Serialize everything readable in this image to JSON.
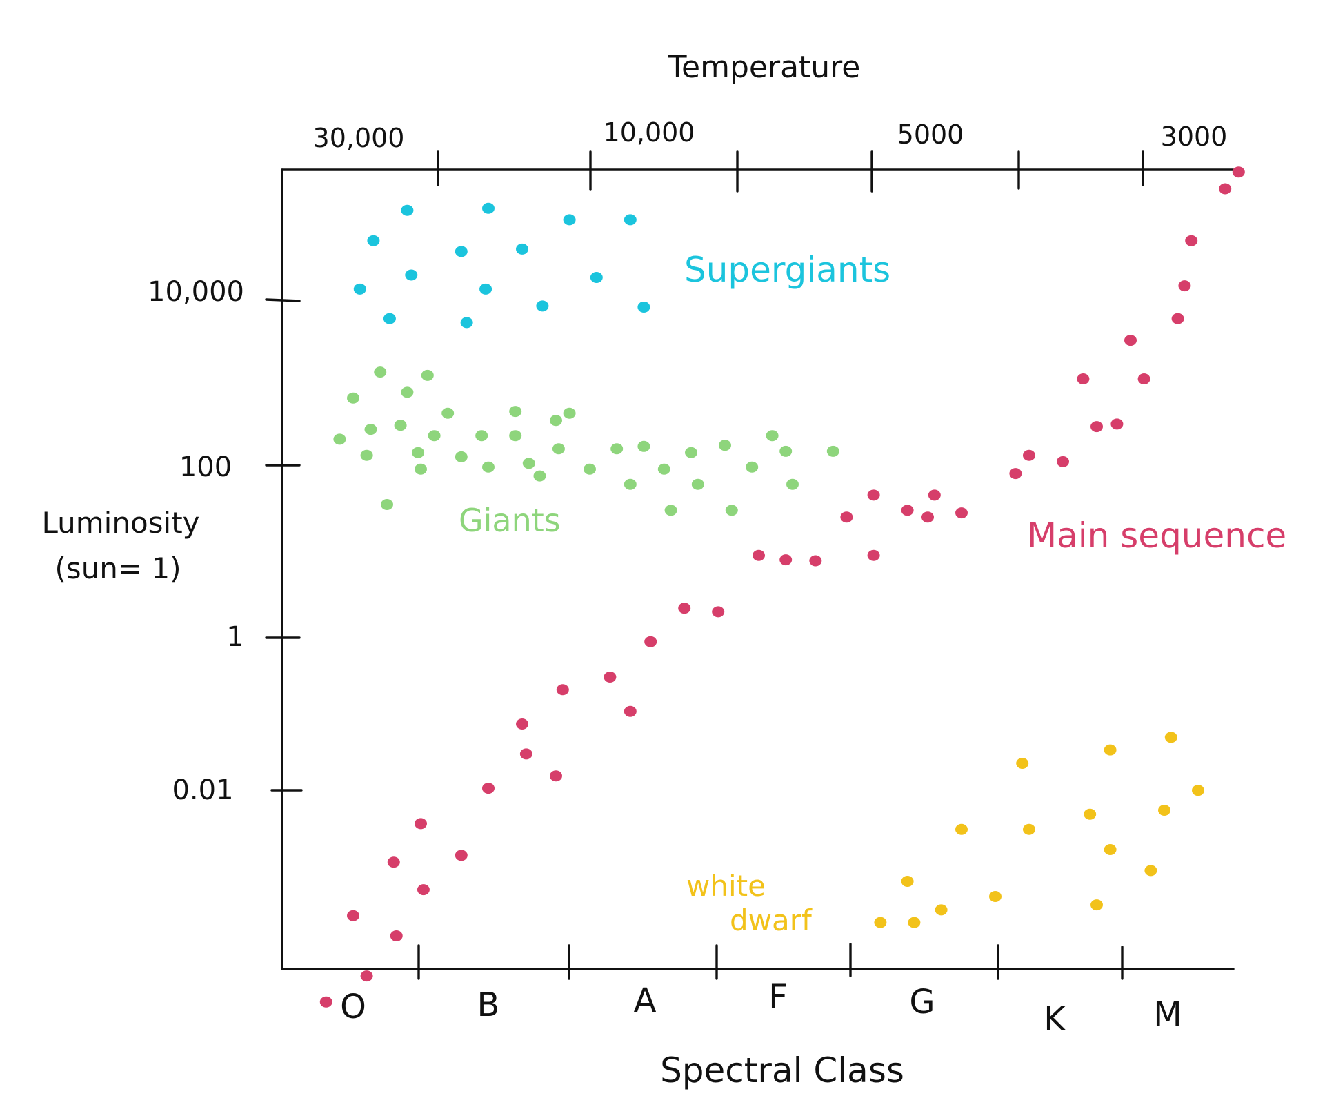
{
  "chart_data": {
    "type": "scatter",
    "title": "",
    "x_axis_bottom": {
      "label": "Spectral Class",
      "categories": [
        "O",
        "B",
        "A",
        "F",
        "G",
        "K",
        "M"
      ]
    },
    "x_axis_top": {
      "label": "Temperature",
      "ticks": [
        "30,000",
        "10,000",
        "5000",
        "3000"
      ]
    },
    "y_axis": {
      "label_line1": "Luminosity",
      "label_line2": "(sun= 1)",
      "scale": "log",
      "ticks": [
        "10,000",
        "100",
        "1",
        "0.01"
      ],
      "tick_values": [
        10000,
        100,
        1,
        0.01
      ]
    },
    "grid": false,
    "series": [
      {
        "name": "Supergiants",
        "color": "#1bc4dd",
        "points": [
          {
            "class_pos": 0.05,
            "luminosity": 11000
          },
          {
            "class_pos": 0.15,
            "luminosity": 40000
          },
          {
            "class_pos": 0.27,
            "luminosity": 5000
          },
          {
            "class_pos": 0.4,
            "luminosity": 90000
          },
          {
            "class_pos": 0.43,
            "luminosity": 16000
          },
          {
            "class_pos": 0.8,
            "luminosity": 30000
          },
          {
            "class_pos": 0.84,
            "luminosity": 4500
          },
          {
            "class_pos": 0.98,
            "luminosity": 11000
          },
          {
            "class_pos": 1.0,
            "luminosity": 95000
          },
          {
            "class_pos": 1.25,
            "luminosity": 32000
          },
          {
            "class_pos": 1.4,
            "luminosity": 7000
          },
          {
            "class_pos": 1.6,
            "luminosity": 70000
          },
          {
            "class_pos": 1.8,
            "luminosity": 15000
          },
          {
            "class_pos": 2.05,
            "luminosity": 70000
          },
          {
            "class_pos": 2.15,
            "luminosity": 6800
          }
        ]
      },
      {
        "name": "Giants",
        "color": "#8ed57c",
        "points": [
          {
            "class_pos": -0.1,
            "luminosity": 200
          },
          {
            "class_pos": 0.0,
            "luminosity": 600
          },
          {
            "class_pos": 0.1,
            "luminosity": 130
          },
          {
            "class_pos": 0.13,
            "luminosity": 260
          },
          {
            "class_pos": 0.2,
            "luminosity": 1200
          },
          {
            "class_pos": 0.25,
            "luminosity": 35
          },
          {
            "class_pos": 0.35,
            "luminosity": 290
          },
          {
            "class_pos": 0.4,
            "luminosity": 700
          },
          {
            "class_pos": 0.48,
            "luminosity": 140
          },
          {
            "class_pos": 0.5,
            "luminosity": 90
          },
          {
            "class_pos": 0.55,
            "luminosity": 1100
          },
          {
            "class_pos": 0.6,
            "luminosity": 220
          },
          {
            "class_pos": 0.7,
            "luminosity": 400
          },
          {
            "class_pos": 0.8,
            "luminosity": 125
          },
          {
            "class_pos": 0.95,
            "luminosity": 220
          },
          {
            "class_pos": 1.0,
            "luminosity": 95
          },
          {
            "class_pos": 1.2,
            "luminosity": 420
          },
          {
            "class_pos": 1.2,
            "luminosity": 220
          },
          {
            "class_pos": 1.3,
            "luminosity": 105
          },
          {
            "class_pos": 1.38,
            "luminosity": 75
          },
          {
            "class_pos": 1.5,
            "luminosity": 330
          },
          {
            "class_pos": 1.52,
            "luminosity": 155
          },
          {
            "class_pos": 1.6,
            "luminosity": 400
          },
          {
            "class_pos": 1.75,
            "luminosity": 90
          },
          {
            "class_pos": 1.95,
            "luminosity": 155
          },
          {
            "class_pos": 2.05,
            "luminosity": 60
          },
          {
            "class_pos": 2.15,
            "luminosity": 165
          },
          {
            "class_pos": 2.3,
            "luminosity": 90
          },
          {
            "class_pos": 2.35,
            "luminosity": 30
          },
          {
            "class_pos": 2.5,
            "luminosity": 140
          },
          {
            "class_pos": 2.55,
            "luminosity": 60
          },
          {
            "class_pos": 2.75,
            "luminosity": 170
          },
          {
            "class_pos": 2.8,
            "luminosity": 30
          },
          {
            "class_pos": 2.95,
            "luminosity": 95
          },
          {
            "class_pos": 3.1,
            "luminosity": 220
          },
          {
            "class_pos": 3.2,
            "luminosity": 145
          },
          {
            "class_pos": 3.25,
            "luminosity": 60
          },
          {
            "class_pos": 3.55,
            "luminosity": 145
          }
        ]
      },
      {
        "name": "Main sequence",
        "color": "#d63e6a",
        "points": [
          {
            "class_pos": -0.2,
            "luminosity": 6e-05
          },
          {
            "class_pos": 0.0,
            "luminosity": 0.0006
          },
          {
            "class_pos": 0.1,
            "luminosity": 0.00012
          },
          {
            "class_pos": 0.3,
            "luminosity": 0.0025
          },
          {
            "class_pos": 0.32,
            "luminosity": 0.00035
          },
          {
            "class_pos": 0.5,
            "luminosity": 0.007
          },
          {
            "class_pos": 0.52,
            "luminosity": 0.0012
          },
          {
            "class_pos": 0.8,
            "luminosity": 0.003
          },
          {
            "class_pos": 1.0,
            "luminosity": 0.018
          },
          {
            "class_pos": 1.25,
            "luminosity": 0.1
          },
          {
            "class_pos": 1.28,
            "luminosity": 0.045
          },
          {
            "class_pos": 1.5,
            "luminosity": 0.025
          },
          {
            "class_pos": 1.55,
            "luminosity": 0.25
          },
          {
            "class_pos": 1.9,
            "luminosity": 0.35
          },
          {
            "class_pos": 2.05,
            "luminosity": 0.14
          },
          {
            "class_pos": 2.2,
            "luminosity": 0.9
          },
          {
            "class_pos": 2.45,
            "luminosity": 2.2
          },
          {
            "class_pos": 2.7,
            "luminosity": 2.0
          },
          {
            "class_pos": 3.0,
            "luminosity": 9
          },
          {
            "class_pos": 3.2,
            "luminosity": 8
          },
          {
            "class_pos": 3.42,
            "luminosity": 7.8
          },
          {
            "class_pos": 3.65,
            "luminosity": 25
          },
          {
            "class_pos": 3.85,
            "luminosity": 45
          },
          {
            "class_pos": 3.85,
            "luminosity": 9
          },
          {
            "class_pos": 4.1,
            "luminosity": 30
          },
          {
            "class_pos": 4.25,
            "luminosity": 25
          },
          {
            "class_pos": 4.3,
            "luminosity": 45
          },
          {
            "class_pos": 4.5,
            "luminosity": 28
          },
          {
            "class_pos": 4.9,
            "luminosity": 80
          },
          {
            "class_pos": 5.0,
            "luminosity": 130
          },
          {
            "class_pos": 5.25,
            "luminosity": 110
          },
          {
            "class_pos": 5.4,
            "luminosity": 1000
          },
          {
            "class_pos": 5.5,
            "luminosity": 280
          },
          {
            "class_pos": 5.65,
            "luminosity": 300
          },
          {
            "class_pos": 5.75,
            "luminosity": 2800
          },
          {
            "class_pos": 5.85,
            "luminosity": 1000
          },
          {
            "class_pos": 6.1,
            "luminosity": 5000
          },
          {
            "class_pos": 6.15,
            "luminosity": 12000
          },
          {
            "class_pos": 6.2,
            "luminosity": 40000
          },
          {
            "class_pos": 6.45,
            "luminosity": 160000
          },
          {
            "class_pos": 6.55,
            "luminosity": 250000
          }
        ]
      },
      {
        "name": "white dwarf",
        "color": "#f2c21a",
        "points": [
          {
            "class_pos": 3.9,
            "luminosity": 0.0005
          },
          {
            "class_pos": 4.1,
            "luminosity": 0.0015
          },
          {
            "class_pos": 4.15,
            "luminosity": 0.0005
          },
          {
            "class_pos": 4.35,
            "luminosity": 0.0007
          },
          {
            "class_pos": 4.5,
            "luminosity": 0.006
          },
          {
            "class_pos": 4.75,
            "luminosity": 0.001
          },
          {
            "class_pos": 4.95,
            "luminosity": 0.035
          },
          {
            "class_pos": 5.0,
            "luminosity": 0.006
          },
          {
            "class_pos": 5.45,
            "luminosity": 0.009
          },
          {
            "class_pos": 5.5,
            "luminosity": 0.0008
          },
          {
            "class_pos": 5.6,
            "luminosity": 0.05
          },
          {
            "class_pos": 5.6,
            "luminosity": 0.0035
          },
          {
            "class_pos": 5.9,
            "luminosity": 0.002
          },
          {
            "class_pos": 6.0,
            "luminosity": 0.01
          },
          {
            "class_pos": 6.05,
            "luminosity": 0.07
          },
          {
            "class_pos": 6.25,
            "luminosity": 0.017
          }
        ]
      }
    ],
    "annotations": [
      {
        "text": "Supergiants",
        "color": "#1bc4dd"
      },
      {
        "text": "Giants",
        "color": "#8ed57c"
      },
      {
        "text": "Main sequence",
        "color": "#d63e6a"
      },
      {
        "text_line1": "white",
        "text_line2": "dwarf",
        "color": "#f2c21a"
      }
    ]
  }
}
